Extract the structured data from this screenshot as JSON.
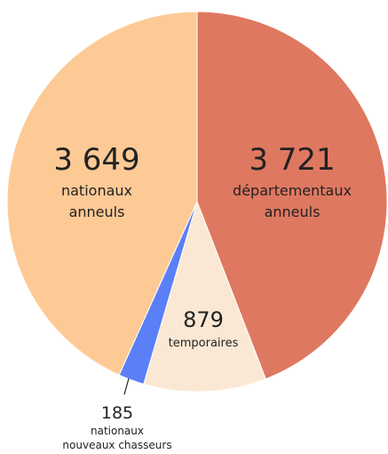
{
  "chart_data": {
    "type": "pie",
    "slices": [
      {
        "value": 3721,
        "value_label": "3 721",
        "label_lines": [
          "départementaux",
          "anneuls"
        ],
        "color": "#df7860"
      },
      {
        "value": 879,
        "value_label": "879",
        "label_lines": [
          "temporaires"
        ],
        "color": "#fbe8d4"
      },
      {
        "value": 185,
        "value_label": "185",
        "label_lines": [
          "nationaux",
          "nouveaux chasseurs"
        ],
        "color": "#5a7ff7"
      },
      {
        "value": 3649,
        "value_label": "3 649",
        "label_lines": [
          "nationaux",
          "anneuls"
        ],
        "color": "#fdca96"
      }
    ],
    "start": "top",
    "direction": "clockwise",
    "legend": "none"
  }
}
